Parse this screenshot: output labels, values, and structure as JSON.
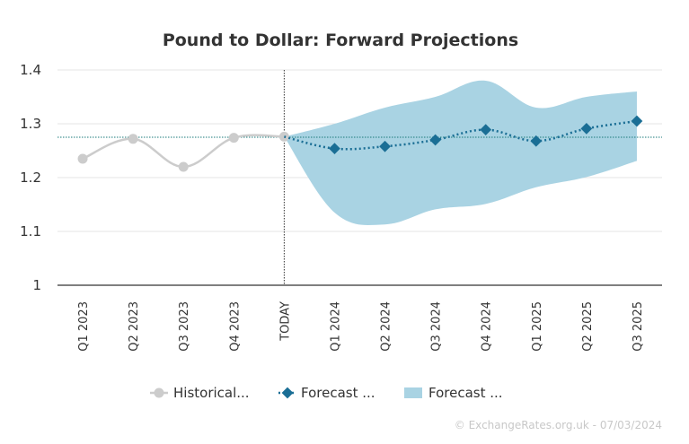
{
  "chart_data": {
    "type": "line",
    "title": "Pound to Dollar: Forward Projections",
    "categories": [
      "Q1 2023",
      "Q2 2023",
      "Q3 2023",
      "Q4 2023",
      "TODAY",
      "Q1 2024",
      "Q2 2024",
      "Q3 2024",
      "Q4 2024",
      "Q1 2025",
      "Q2 2025",
      "Q3 2025"
    ],
    "ylim": [
      1,
      1.4
    ],
    "yticks": [
      "1",
      "1.1",
      "1.2",
      "1.3",
      "1.4"
    ],
    "reference_line": 1.275,
    "series": [
      {
        "name": "Historical...",
        "type": "line",
        "color": "#cccccc",
        "values": [
          1.235,
          1.272,
          1.22,
          1.274,
          1.276,
          null,
          null,
          null,
          null,
          null,
          null,
          null
        ]
      },
      {
        "name": "Forecast ...",
        "type": "line",
        "color": "#1a6e95",
        "values": [
          null,
          null,
          null,
          null,
          1.276,
          1.254,
          1.258,
          1.27,
          1.289,
          1.268,
          1.291,
          1.305
        ]
      },
      {
        "name": "Forecast ...",
        "type": "area",
        "color": "#a9d3e3",
        "upper": [
          null,
          null,
          null,
          null,
          1.276,
          1.3,
          1.33,
          1.35,
          1.38,
          1.33,
          1.35,
          1.36
        ],
        "lower": [
          null,
          null,
          null,
          null,
          1.276,
          1.135,
          1.113,
          1.141,
          1.151,
          1.182,
          1.201,
          1.231
        ]
      }
    ],
    "grid": true,
    "legend": "bottom"
  },
  "credit": "© ExchangeRates.org.uk - 07/03/2024"
}
